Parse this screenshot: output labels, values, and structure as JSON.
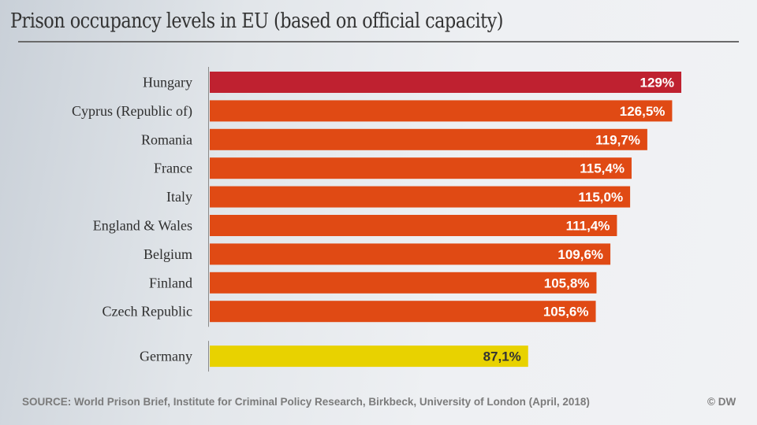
{
  "chart_data": {
    "type": "bar",
    "orientation": "horizontal",
    "title": "Prison occupancy levels in EU (based on official capacity)",
    "xlabel": "",
    "ylabel": "",
    "unit": "%",
    "xlim": [
      0,
      129
    ],
    "grid": false,
    "categories": [
      "Hungary",
      "Cyprus (Republic of)",
      "Romania",
      "France",
      "Italy",
      "England & Wales",
      "Belgium",
      "Finland",
      "Czech Republic",
      "Germany"
    ],
    "values": [
      129,
      126.5,
      119.7,
      115.4,
      115.0,
      111.4,
      109.6,
      105.8,
      105.6,
      87.1
    ],
    "value_labels": [
      "129%",
      "126,5%",
      "119,7%",
      "115,4%",
      "115,0%",
      "111,4%",
      "109,6%",
      "105,8%",
      "105,6%",
      "87,1%"
    ],
    "bar_colors": [
      "#bf2130",
      "#e04a14",
      "#e04a14",
      "#e04a14",
      "#e04a14",
      "#e04a14",
      "#e04a14",
      "#e04a14",
      "#e04a14",
      "#e8d200"
    ],
    "label_colors": [
      "#ffffff",
      "#ffffff",
      "#ffffff",
      "#ffffff",
      "#ffffff",
      "#ffffff",
      "#ffffff",
      "#ffffff",
      "#ffffff",
      "#333333"
    ],
    "separated_groups": [
      [
        0,
        8
      ],
      [
        9,
        9
      ]
    ]
  },
  "footer": {
    "source": "SOURCE: World Prison Brief, Institute for Criminal Policy Research, Birkbeck, University of London (April, 2018)",
    "credit": "© DW"
  }
}
